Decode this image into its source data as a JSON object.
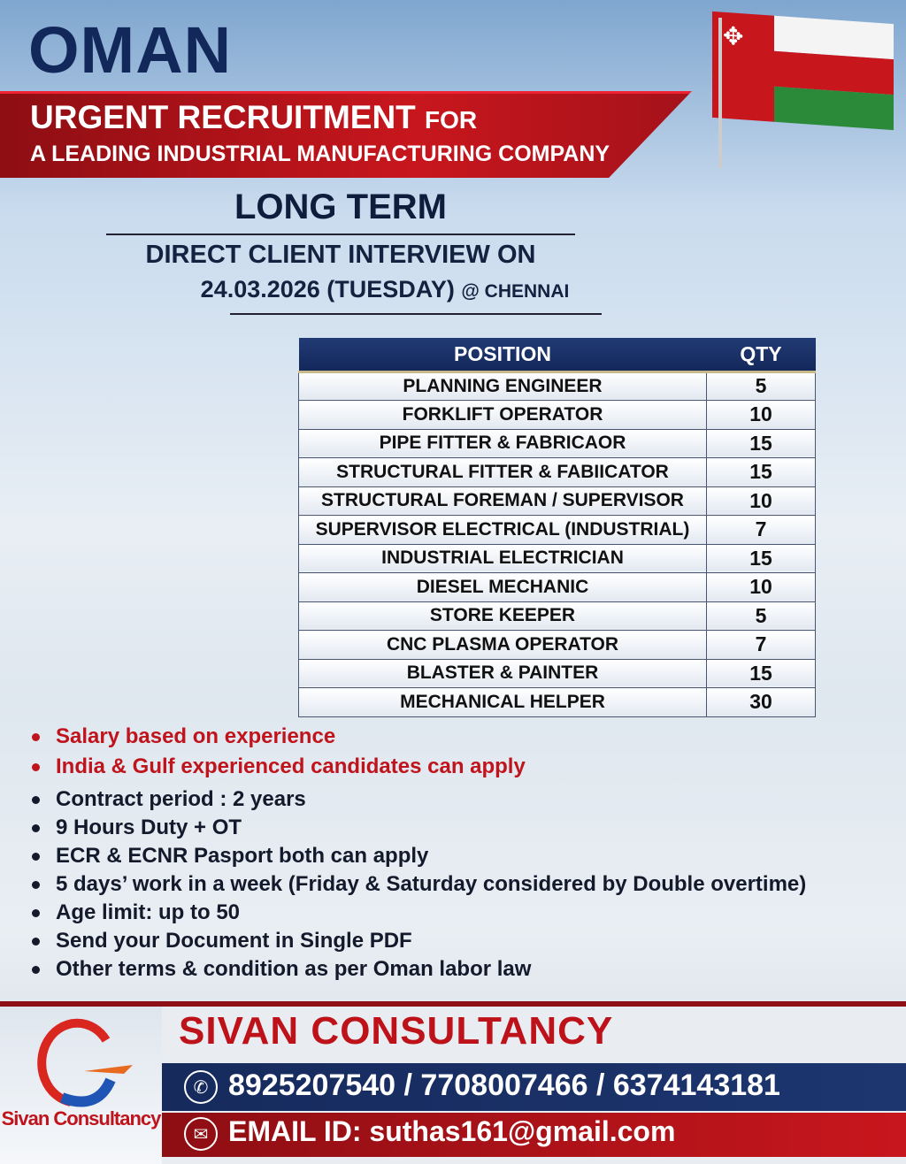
{
  "header": {
    "country": "OMAN",
    "banner_line1": "URGENT RECRUITMENT",
    "banner_line1_suffix": "FOR",
    "banner_line2": "A LEADING INDUSTRIAL MANUFACTURING COMPANY",
    "term": "LONG TERM",
    "interview_line1": "DIRECT CLIENT INTERVIEW ON",
    "interview_date": "24.03.2026 (TUESDAY)",
    "interview_location": "@ CHENNAI"
  },
  "table": {
    "headers": [
      "POSITION",
      "QTY"
    ],
    "rows": [
      {
        "position": "PLANNING ENGINEER",
        "qty": "5"
      },
      {
        "position": "FORKLIFT OPERATOR",
        "qty": "10"
      },
      {
        "position": "PIPE FITTER & FABRICAOR",
        "qty": "15"
      },
      {
        "position": "STRUCTURAL FITTER & FABIICATOR",
        "qty": "15"
      },
      {
        "position": "STRUCTURAL FOREMAN / SUPERVISOR",
        "qty": "10"
      },
      {
        "position": "SUPERVISOR ELECTRICAL (INDUSTRIAL)",
        "qty": "7"
      },
      {
        "position": "INDUSTRIAL ELECTRICIAN",
        "qty": "15"
      },
      {
        "position": "DIESEL MECHANIC",
        "qty": "10"
      },
      {
        "position": "STORE KEEPER",
        "qty": "5"
      },
      {
        "position": "CNC PLASMA OPERATOR",
        "qty": "7"
      },
      {
        "position": "BLASTER & PAINTER",
        "qty": "15"
      },
      {
        "position": "MECHANICAL HELPER",
        "qty": "30"
      }
    ]
  },
  "highlights": [
    "Salary based on experience",
    "India & Gulf experienced candidates can apply"
  ],
  "terms": [
    "Contract period : 2 years",
    "9 Hours Duty + OT",
    "ECR & ECNR Pasport both can apply",
    "5 days’ work in a week (Friday & Saturday considered by Double overtime)",
    "Age limit: up to 50",
    "Send your Document in Single PDF",
    "Other terms & condition as per Oman labor law"
  ],
  "footer": {
    "logo_text": "Sivan Consultancy",
    "company": "SIVAN CONSULTANCY",
    "phones": "8925207540 / 7708007466 / 6374143181",
    "email": "EMAIL ID: suthas161@gmail.com"
  },
  "colors": {
    "navy": "#12275a",
    "red": "#c0141c"
  },
  "icons": [
    "oman-flag-icon",
    "phone-icon",
    "email-icon",
    "logo-plane-icon"
  ]
}
